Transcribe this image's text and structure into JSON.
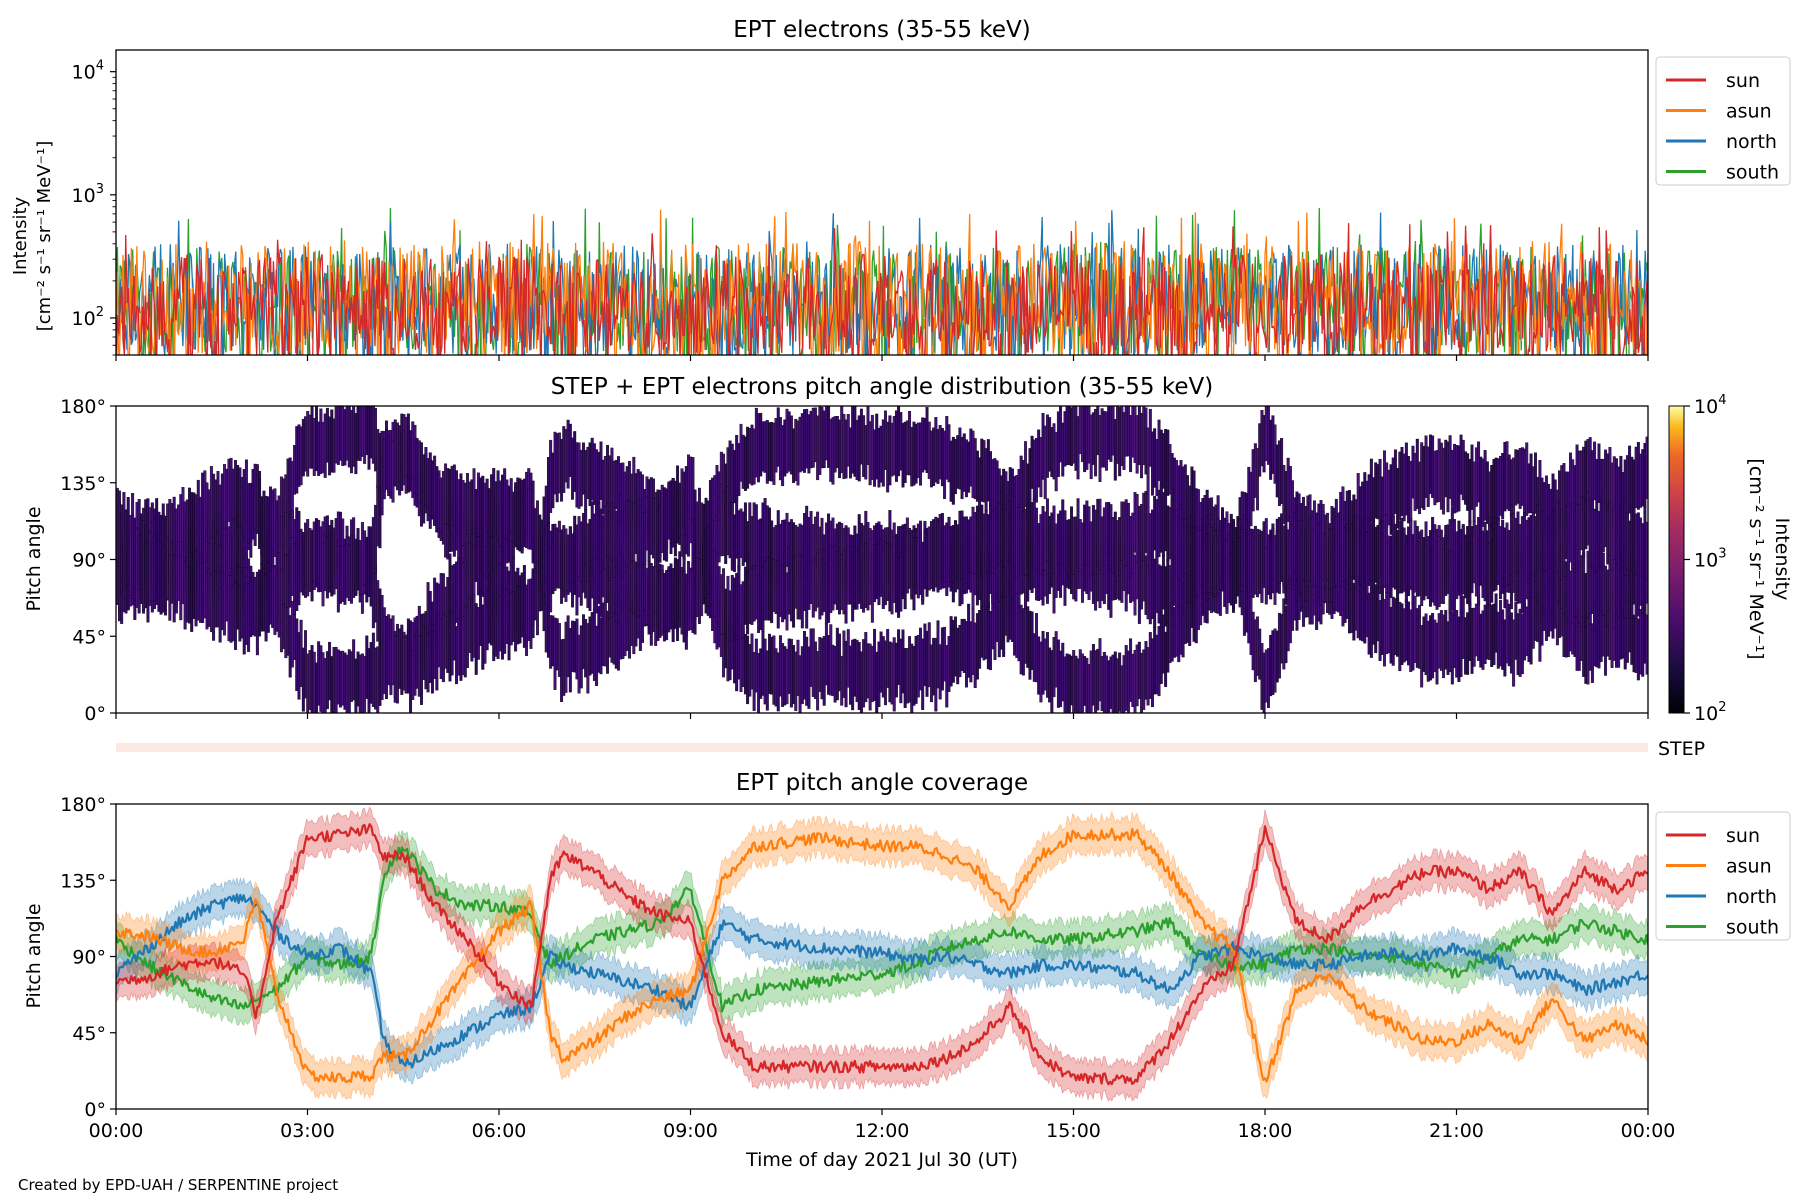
{
  "footer": "Created by EPD-UAH / SERPENTINE project",
  "colors": {
    "sun": "#d62728",
    "asun": "#ff7f0e",
    "north": "#1f77b4",
    "south": "#2ca02c",
    "pad_fill": "#3b0f70",
    "pad_dark": "#000004",
    "step_band": "#fde9e4"
  },
  "chart_data": [
    {
      "type": "line",
      "title": "EPT electrons (35-55 keV)",
      "ylabel": "Intensity",
      "ylabel_units": "[cm⁻² s⁻¹ sr⁻¹ MeV⁻¹]",
      "yscale": "log",
      "ylim": [
        50,
        15000
      ],
      "yticks": [
        {
          "value": 100,
          "base": "10",
          "exp": "2"
        },
        {
          "value": 1000,
          "base": "10",
          "exp": "3"
        },
        {
          "value": 10000,
          "base": "10",
          "exp": "4"
        }
      ],
      "x_hours": [
        0,
        24
      ],
      "legend_position": "upper-right outside",
      "series": [
        {
          "name": "sun",
          "color": "#d62728",
          "typical_range": [
            50,
            330
          ],
          "peak": 620
        },
        {
          "name": "asun",
          "color": "#ff7f0e",
          "typical_range": [
            50,
            420
          ],
          "peak": 760
        },
        {
          "name": "north",
          "color": "#1f77b4",
          "typical_range": [
            50,
            400
          ],
          "peak": 820
        },
        {
          "name": "south",
          "color": "#2ca02c",
          "typical_range": [
            50,
            380
          ],
          "peak": 800
        }
      ]
    },
    {
      "type": "heatmap",
      "title": "STEP + EPT electrons pitch angle distribution (35-55 keV)",
      "ylabel": "Pitch angle",
      "ylim": [
        0,
        180
      ],
      "yticks": [
        "0°",
        "45°",
        "90°",
        "135°",
        "180°"
      ],
      "colorbar": {
        "label": "Intensity",
        "units": "[cm⁻² s⁻¹ sr⁻¹ MeV⁻¹]",
        "scale": "log",
        "range": [
          100,
          10000
        ],
        "ticks": [
          {
            "base": "10",
            "exp": "2"
          },
          {
            "base": "10",
            "exp": "3"
          },
          {
            "base": "10",
            "exp": "4"
          }
        ],
        "colormap": "inferno"
      },
      "step_label": "STEP"
    },
    {
      "type": "line",
      "title": "EPT pitch angle coverage",
      "ylabel": "Pitch angle",
      "ylim": [
        0,
        180
      ],
      "yticks": [
        "0°",
        "45°",
        "90°",
        "135°",
        "180°"
      ],
      "xlabel": "Time of day 2021 Jul 30 (UT)",
      "xticks": [
        "00:00",
        "03:00",
        "06:00",
        "09:00",
        "12:00",
        "15:00",
        "18:00",
        "21:00",
        "00:00"
      ],
      "legend_position": "upper-right outside",
      "band_halfwidth_deg": 10,
      "series": [
        {
          "name": "sun",
          "color": "#d62728",
          "x": [
            0,
            0.5,
            1,
            1.5,
            2,
            2.2,
            2.5,
            3,
            3.5,
            4,
            4.2,
            4.5,
            5,
            5.5,
            6,
            6.5,
            6.8,
            7,
            7.5,
            8,
            8.5,
            9,
            9.5,
            10,
            11,
            12,
            12.5,
            13,
            13.5,
            14,
            14.5,
            15,
            16,
            16.5,
            17,
            17.5,
            18,
            18.5,
            19,
            19.5,
            20,
            20.5,
            21,
            21.5,
            22,
            22.5,
            23,
            23.5,
            24
          ],
          "y": [
            75,
            78,
            85,
            88,
            80,
            55,
            110,
            160,
            162,
            165,
            148,
            150,
            120,
            100,
            75,
            60,
            135,
            150,
            140,
            125,
            115,
            110,
            45,
            25,
            25,
            25,
            25,
            30,
            40,
            60,
            30,
            18,
            18,
            40,
            70,
            85,
            165,
            110,
            100,
            120,
            130,
            140,
            140,
            130,
            140,
            115,
            140,
            130,
            140
          ]
        },
        {
          "name": "asun",
          "color": "#ff7f0e",
          "x": [
            0,
            0.5,
            1,
            1.5,
            2,
            2.2,
            2.5,
            3,
            3.5,
            4,
            4.2,
            4.5,
            5,
            5.5,
            6,
            6.5,
            6.8,
            7,
            7.5,
            8,
            8.5,
            9,
            9.5,
            10,
            11,
            12,
            12.5,
            13,
            13.5,
            14,
            14.5,
            15,
            16,
            16.5,
            17,
            17.5,
            18,
            18.5,
            19,
            19.5,
            20,
            20.5,
            21,
            21.5,
            22,
            22.5,
            23,
            23.5,
            24
          ],
          "y": [
            105,
            102,
            95,
            92,
            100,
            125,
            70,
            20,
            18,
            20,
            32,
            30,
            55,
            80,
            105,
            120,
            45,
            30,
            40,
            55,
            65,
            70,
            135,
            155,
            160,
            155,
            155,
            150,
            140,
            120,
            150,
            162,
            162,
            140,
            110,
            95,
            15,
            70,
            80,
            60,
            50,
            40,
            40,
            50,
            40,
            65,
            40,
            50,
            40
          ]
        },
        {
          "name": "north",
          "color": "#1f77b4",
          "x": [
            0,
            0.5,
            1,
            1.5,
            2,
            2.2,
            2.5,
            3,
            3.5,
            4,
            4.2,
            4.5,
            5,
            5.5,
            6,
            6.5,
            6.8,
            7,
            7.5,
            8,
            8.5,
            9,
            9.5,
            10,
            11,
            12,
            12.5,
            13,
            13.5,
            14,
            14.5,
            15,
            16,
            16.5,
            17,
            17.5,
            18,
            18.5,
            19,
            19.5,
            20,
            20.5,
            21,
            21.5,
            22,
            22.5,
            23,
            23.5,
            24
          ],
          "y": [
            80,
            95,
            110,
            120,
            125,
            120,
            105,
            90,
            95,
            80,
            40,
            25,
            35,
            45,
            55,
            60,
            90,
            85,
            80,
            75,
            70,
            60,
            110,
            100,
            95,
            92,
            88,
            90,
            85,
            80,
            85,
            85,
            80,
            70,
            90,
            95,
            90,
            85,
            85,
            90,
            92,
            90,
            95,
            90,
            80,
            80,
            70,
            75,
            80
          ]
        },
        {
          "name": "south",
          "color": "#2ca02c",
          "x": [
            0,
            0.5,
            1,
            1.5,
            2,
            2.2,
            2.5,
            3,
            3.5,
            4,
            4.2,
            4.5,
            5,
            5.5,
            6,
            6.5,
            6.8,
            7,
            7.5,
            8,
            8.5,
            9,
            9.5,
            10,
            11,
            12,
            12.5,
            13,
            13.5,
            14,
            14.5,
            15,
            16,
            16.5,
            17,
            17.5,
            18,
            18.5,
            19,
            19.5,
            20,
            20.5,
            21,
            21.5,
            22,
            22.5,
            23,
            23.5,
            24
          ],
          "y": [
            100,
            85,
            75,
            65,
            60,
            65,
            70,
            90,
            85,
            90,
            140,
            155,
            130,
            120,
            120,
            115,
            85,
            90,
            100,
            105,
            110,
            130,
            60,
            70,
            75,
            80,
            85,
            95,
            100,
            105,
            100,
            100,
            105,
            110,
            90,
            85,
            85,
            95,
            95,
            90,
            90,
            85,
            80,
            90,
            100,
            100,
            110,
            105,
            100
          ]
        }
      ]
    }
  ]
}
